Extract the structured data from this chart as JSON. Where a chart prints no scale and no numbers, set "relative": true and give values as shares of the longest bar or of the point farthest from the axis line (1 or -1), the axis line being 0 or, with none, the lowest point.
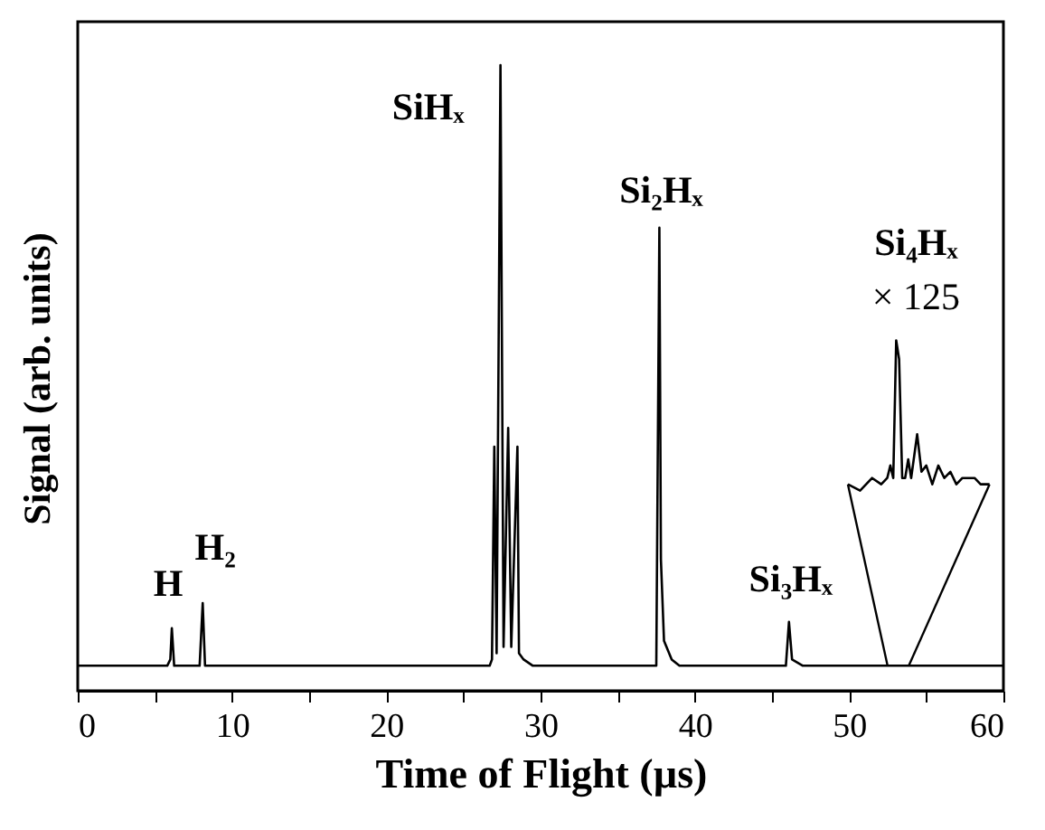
{
  "chart_data": {
    "type": "line",
    "relative": true,
    "xlabel": "Time of Flight (µs)",
    "ylabel": "Signal (arb. units)",
    "xlim": [
      0,
      60
    ],
    "xticks": [
      0,
      {
        "value": 5,
        "label": null
      },
      10,
      {
        "value": 15,
        "label": null
      },
      20,
      {
        "value": 25,
        "label": null
      },
      30,
      {
        "value": 35,
        "label": null
      },
      40,
      {
        "value": 45,
        "label": null
      },
      50,
      {
        "value": 55,
        "label": null
      },
      60
    ],
    "series": [
      {
        "color": "#000000",
        "x": [
          0,
          5.8,
          6.0,
          6.1,
          6.25,
          7.9,
          8.1,
          8.25,
          20,
          26.7,
          26.85,
          27.0,
          27.15,
          27.4,
          27.6,
          27.9,
          28.1,
          28.5,
          28.6,
          28.9,
          29.5,
          37.5,
          37.7,
          37.8,
          38.0,
          38.5,
          39,
          45.9,
          46.1,
          46.3,
          47,
          60
        ],
        "values": [
          0.04,
          0.04,
          0.05,
          0.1,
          0.04,
          0.04,
          0.14,
          0.04,
          0.04,
          0.04,
          0.05,
          0.39,
          0.06,
          1.0,
          0.07,
          0.42,
          0.07,
          0.39,
          0.06,
          0.05,
          0.04,
          0.04,
          0.74,
          0.21,
          0.08,
          0.05,
          0.04,
          0.04,
          0.11,
          0.05,
          0.04,
          0.04
        ]
      },
      {
        "color": "#000000",
        "x": [
          49.92,
          50.71,
          51.49,
          52.08,
          52.47,
          52.67,
          52.86,
          53.05,
          53.24,
          53.44,
          53.63,
          53.83,
          54.02,
          54.41,
          54.69,
          55.0,
          55.39,
          55.78,
          56.17,
          56.56,
          56.95,
          57.34,
          57.73,
          58.13,
          58.52,
          59.1
        ],
        "values": [
          0.33,
          0.32,
          0.34,
          0.33,
          0.34,
          0.36,
          0.34,
          0.56,
          0.53,
          0.34,
          0.34,
          0.37,
          0.34,
          0.41,
          0.35,
          0.36,
          0.33,
          0.36,
          0.34,
          0.35,
          0.33,
          0.34,
          0.34,
          0.34,
          0.33,
          0.33
        ]
      }
    ],
    "annotations": [
      {
        "text": "H",
        "x": 6.1,
        "y": 0.1
      },
      {
        "text": "H₂",
        "x": 8.1,
        "y": 0.14
      },
      {
        "text": "SiHₓ",
        "x": 27.4,
        "y": 1.0
      },
      {
        "text": "Si₂Hₓ",
        "x": 37.7,
        "y": 0.74
      },
      {
        "text": "Si₃Hₓ",
        "x": 46.1,
        "y": 0.11
      },
      {
        "text": "Si₄Hₓ",
        "x": 53.05,
        "y": 0.56
      },
      "× 125"
    ]
  }
}
